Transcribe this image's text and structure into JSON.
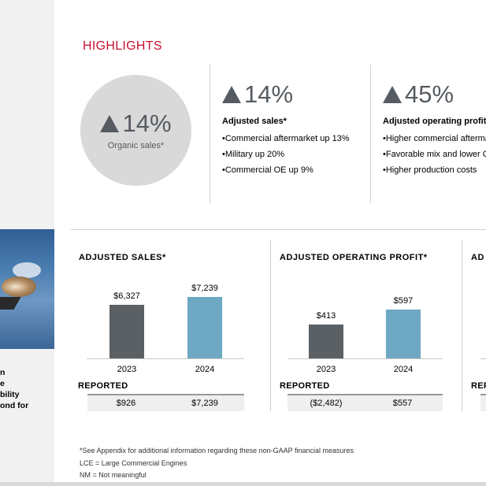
{
  "highlights": {
    "title": "HIGHLIGHTS",
    "circle": {
      "value": "14%",
      "label": "Organic sales*"
    },
    "kpis": [
      {
        "value": "14%",
        "heading": "Adjusted sales*",
        "bullets": [
          "Commercial aftermarket up 13%",
          "Military up 20%",
          "Commercial OE up 9%"
        ]
      },
      {
        "value": "45%",
        "heading": "Adjusted operating profit*",
        "bullets": [
          "Higher commercial aftermarket",
          "Favorable mix and lower OE",
          "Higher production costs"
        ]
      }
    ]
  },
  "left_text": [
    "n",
    "e",
    "bility",
    "ond for"
  ],
  "panels": {
    "sales": {
      "title": "ADJUSTED SALES*",
      "reported_label": "REPORTED",
      "reported": [
        "$926",
        "$7,239"
      ],
      "chart_data": {
        "type": "bar",
        "categories": [
          "2023",
          "2024"
        ],
        "values": [
          6327,
          7239
        ],
        "labels": [
          "$6,327",
          "$7,239"
        ],
        "colors": [
          "#5b6064",
          "#6ea8c2"
        ]
      }
    },
    "profit": {
      "title": "ADJUSTED OPERATING PROFIT*",
      "reported_label": "REPORTED",
      "reported": [
        "($2,482)",
        "$557"
      ],
      "chart_data": {
        "type": "bar",
        "categories": [
          "2023",
          "2024"
        ],
        "values": [
          413,
          597
        ],
        "labels": [
          "$413",
          "$597"
        ],
        "colors": [
          "#5b6064",
          "#6ea8c2"
        ]
      }
    },
    "cut": {
      "title": "AD",
      "reported_label": "REP"
    }
  },
  "footer": [
    "*See Appendix for additional information regarding these non-GAAP financial measures",
    "LCE = Large Commercial Engines",
    "NM = Not meaningful"
  ],
  "colors": {
    "accent": "#c8102e",
    "bar_2023": "#5b6064",
    "bar_2024": "#6ea8c2"
  }
}
